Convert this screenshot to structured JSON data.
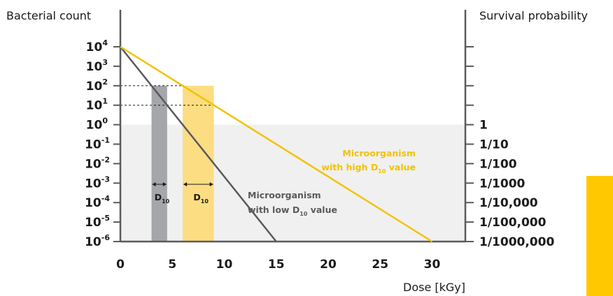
{
  "chart_data": {
    "type": "line",
    "left_axis_label": "Bacterial count",
    "right_axis_label": "Survival probability",
    "xlabel": "Dose [kGy]",
    "x_ticks": [
      "0",
      "5",
      "10",
      "15",
      "20",
      "25",
      "30"
    ],
    "xlim": [
      0,
      33
    ],
    "y_ticks_base": "10",
    "y_ticks_exp": [
      "4",
      "3",
      "2",
      "1",
      "0",
      "-1",
      "-2",
      "-3",
      "-4",
      "-5",
      "-6"
    ],
    "ylim_log10": [
      -6,
      4
    ],
    "right_ticks": [
      "1",
      "1/10",
      "1/100",
      "1/1000",
      "1/10,000",
      "1/100,000",
      "1/1000,000"
    ],
    "right_ticks_log10": [
      0,
      -1,
      -2,
      -3,
      -4,
      -5,
      -6
    ],
    "shaded_region_log10": [
      -6,
      0
    ],
    "series": [
      {
        "color": "#5a5a5e",
        "x": [
          0,
          15
        ],
        "y_log10": [
          4,
          -6
        ],
        "label_line1": "Microorganism",
        "label_line2_pre": "with low D",
        "label_line2_sub": "10",
        "label_line2_post": " value"
      },
      {
        "color": "#f2c200",
        "x": [
          0,
          30
        ],
        "y_log10": [
          4,
          -6
        ],
        "label_line1": "Microorganism",
        "label_line2_pre": "with high D",
        "label_line2_sub": "10",
        "label_line2_post": " value"
      }
    ],
    "d10_bands": [
      {
        "x": [
          3,
          4.5
        ],
        "color": "#a4a6aa",
        "label": "D",
        "sub": "10"
      },
      {
        "x": [
          6,
          9
        ],
        "color": "#fddd82",
        "label": "D",
        "sub": "10"
      }
    ],
    "reference_lines_log10": [
      2,
      1
    ]
  },
  "colors": {
    "shade": "#f0f0f0",
    "axis": "#5a5a5e",
    "side_bar": "#ffc800"
  }
}
